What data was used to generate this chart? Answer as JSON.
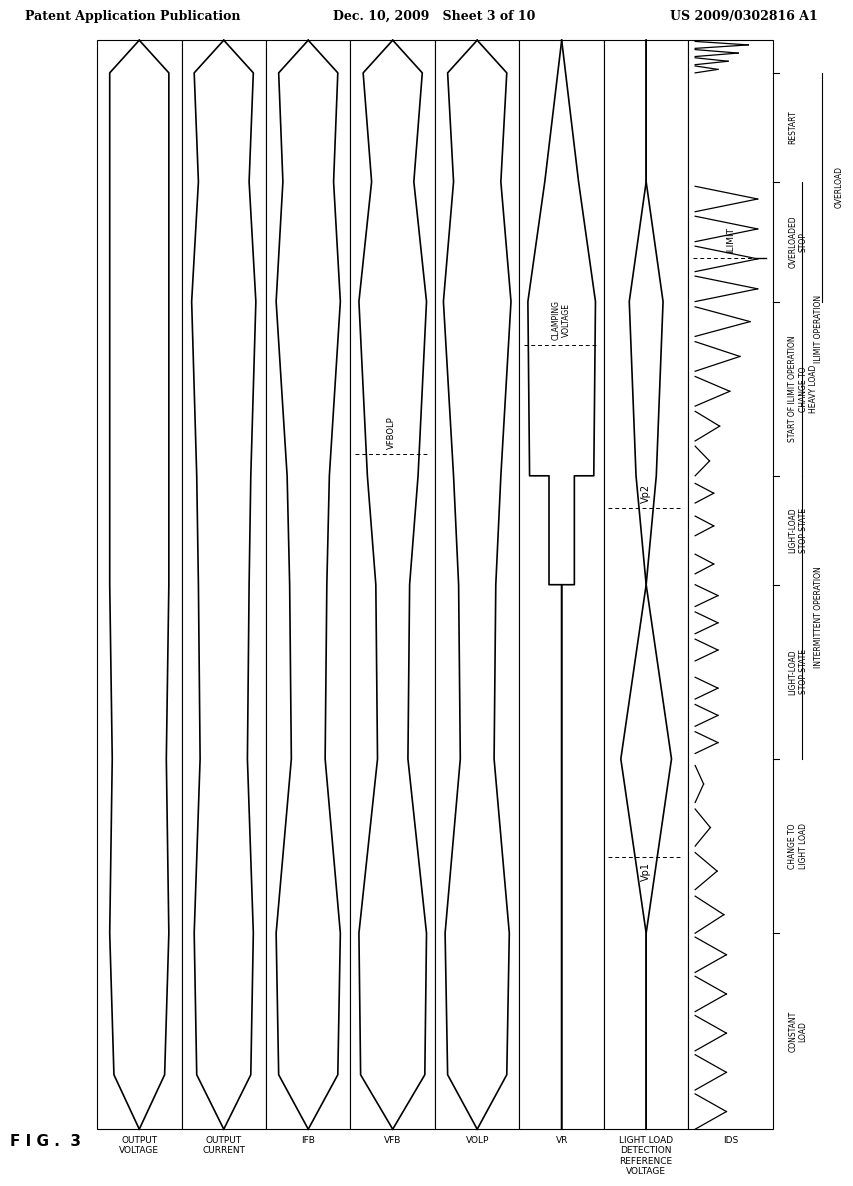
{
  "header_left": "Patent Application Publication",
  "header_mid": "Dec. 10, 2009   Sheet 3 of 10",
  "header_right": "US 2009/0302816 A1",
  "fig_label": "FIG. 3",
  "bg": "#ffffff",
  "signal_labels": [
    "OUTPUT\nVOLTAGE",
    "OUTPUT\nCURRENT",
    "IFB",
    "VFB",
    "VOLP",
    "VR",
    "LIGHT LOAD\nDETECTION\nREFERENCE\nVOLTAGE",
    "IDS"
  ],
  "event_labels": [
    "CONSTANT\nLOAD",
    "CHANGE TO\nLIGHT LOAD",
    "LIGHT-LOAD\nSTOP STATE",
    "LIGHT-LOAD\nSTOP STATE",
    "START OF ILIMIT OPERATION\nCHANGE TO\nHEAVY LOAD",
    "OVERLOADED\nSTOP",
    "RESTART"
  ],
  "region_labels": [
    "INTERMITTENT OPERATION",
    "ILIMIT OPERATION",
    "OVERLOAD"
  ]
}
